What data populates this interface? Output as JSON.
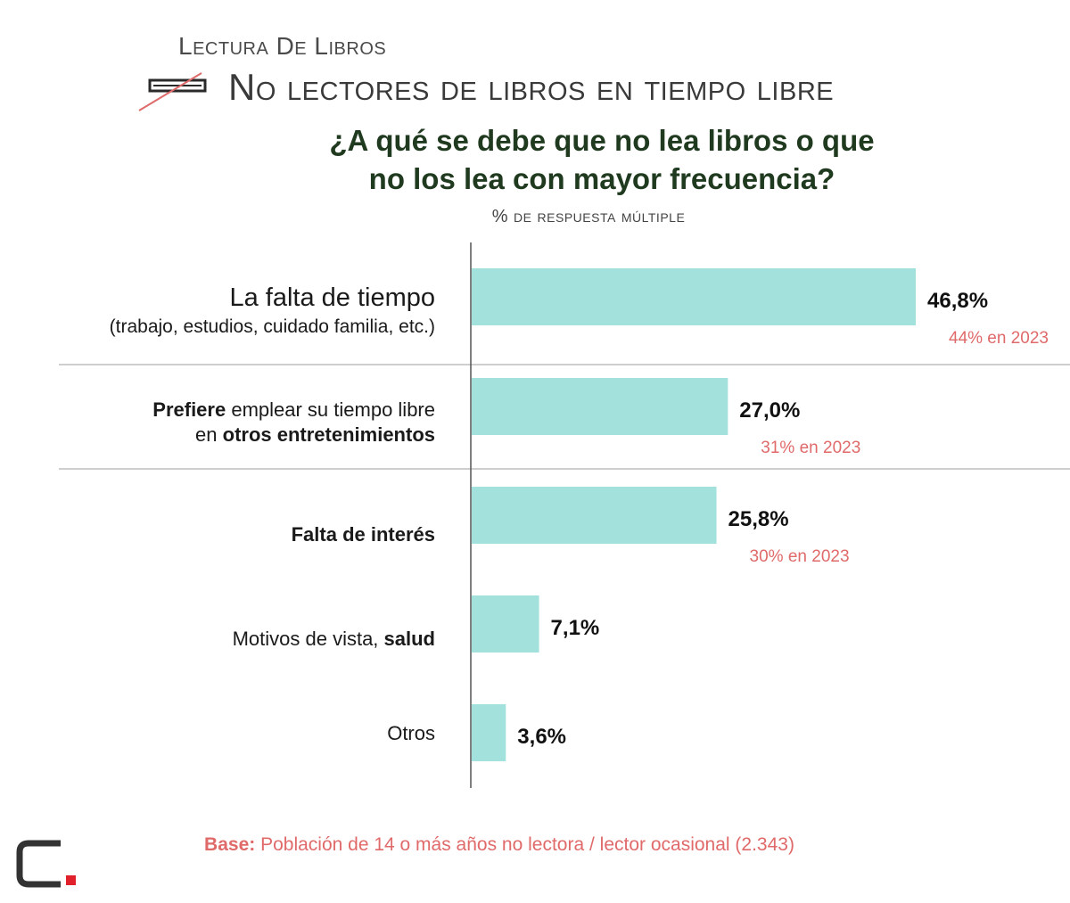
{
  "header": {
    "kicker": "Lectura De Libros",
    "title": "No lectores de libros en tiempo libre",
    "question_line1": "¿A qué se debe que no lea libros o que",
    "question_line2": "no los lea con mayor frecuencia?",
    "subtitle": "% de respuesta múltiple"
  },
  "chart_data": {
    "type": "bar",
    "orientation": "horizontal",
    "bar_color": "#a3e2dc",
    "comparison_color": "#e06a6a",
    "xlim": [
      0,
      85
    ],
    "categories": [
      {
        "lines": [
          [
            {
              "text": "La falta de tiempo",
              "bold": false
            }
          ],
          [
            {
              "text": "(trabajo, estudios, cuidado familia, etc.)",
              "bold": false
            }
          ]
        ],
        "value": 46.8,
        "value_label": "46,8%",
        "previous_label": "44% en 2023"
      },
      {
        "lines": [
          [
            {
              "text": "Prefiere",
              "bold": true
            },
            {
              "text": " emplear su tiempo libre",
              "bold": false
            }
          ],
          [
            {
              "text": "en ",
              "bold": false
            },
            {
              "text": "otros entretenimientos",
              "bold": true
            }
          ]
        ],
        "value": 27.0,
        "value_label": "27,0%",
        "previous_label": "31% en 2023"
      },
      {
        "lines": [
          [
            {
              "text": "Falta de interés",
              "bold": true
            }
          ]
        ],
        "value": 25.8,
        "value_label": "25,8%",
        "previous_label": "30% en 2023"
      },
      {
        "lines": [
          [
            {
              "text": "Motivos de vista, ",
              "bold": false
            },
            {
              "text": "salud",
              "bold": true
            }
          ]
        ],
        "value": 7.1,
        "value_label": "7,1%",
        "previous_label": ""
      },
      {
        "lines": [
          [
            {
              "text": "Otros",
              "bold": false
            }
          ]
        ],
        "value": 3.6,
        "value_label": "3,6%",
        "previous_label": ""
      }
    ]
  },
  "footer": {
    "base_label": "Base:",
    "base_text": " Población de 14 o más años no lectora / lector ocasional (2.343)"
  },
  "logo": {
    "accent": "#e0202a",
    "dark": "#333333"
  }
}
